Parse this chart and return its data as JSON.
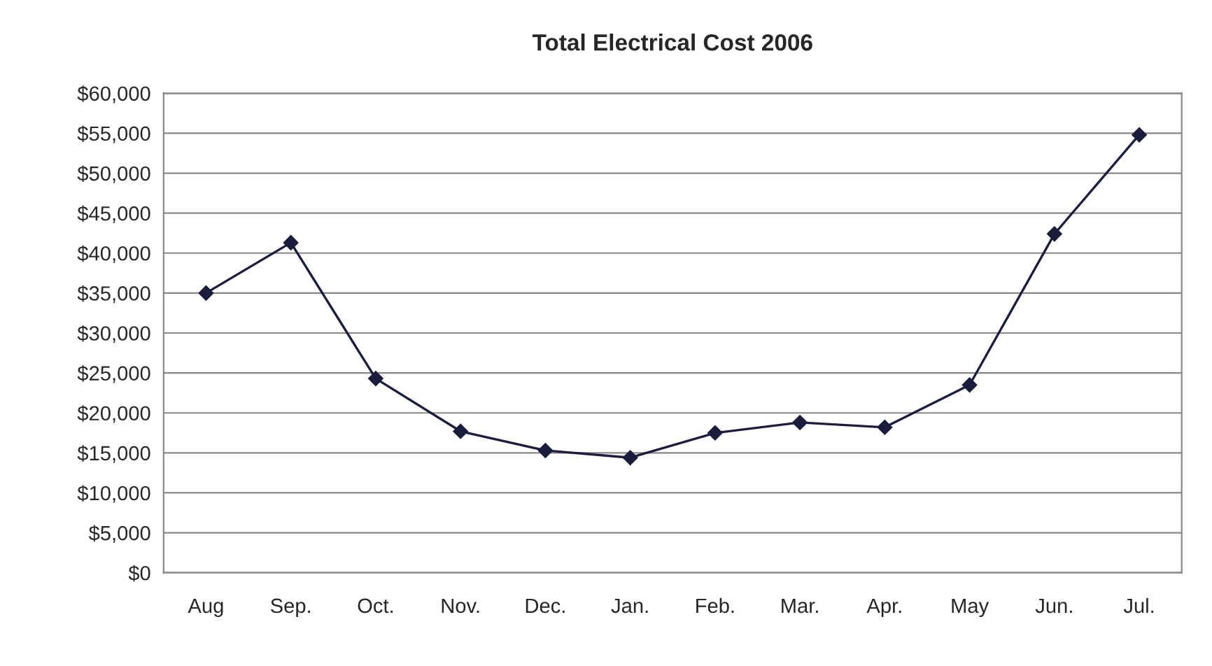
{
  "chart_data": {
    "type": "line",
    "title": "Total Electrical Cost 2006",
    "categories": [
      "Aug",
      "Sep.",
      "Oct.",
      "Nov.",
      "Dec.",
      "Jan.",
      "Feb.",
      "Mar.",
      "Apr.",
      "May",
      "Jun.",
      "Jul."
    ],
    "series": [
      {
        "color": "#1c1c3c",
        "values": [
          35000,
          41300,
          24300,
          17700,
          15300,
          14400,
          17500,
          18800,
          18200,
          23500,
          42400,
          54800
        ]
      }
    ],
    "ylim": [
      0,
      60000
    ],
    "yticks": [
      {
        "value": 0,
        "label": "$0"
      },
      {
        "value": 5000,
        "label": "$5,000"
      },
      {
        "value": 10000,
        "label": "$10,000"
      },
      {
        "value": 15000,
        "label": "$15,000"
      },
      {
        "value": 20000,
        "label": "$20,000"
      },
      {
        "value": 25000,
        "label": "$25,000"
      },
      {
        "value": 30000,
        "label": "$30,000"
      },
      {
        "value": 35000,
        "label": "$35,000"
      },
      {
        "value": 40000,
        "label": "$40,000"
      },
      {
        "value": 45000,
        "label": "$45,000"
      },
      {
        "value": 50000,
        "label": "$50,000"
      },
      {
        "value": 55000,
        "label": "$55,000"
      },
      {
        "value": 60000,
        "label": "$60,000"
      }
    ],
    "grid": "y",
    "marker": "diamond",
    "line_style": "solid",
    "legend": false
  }
}
